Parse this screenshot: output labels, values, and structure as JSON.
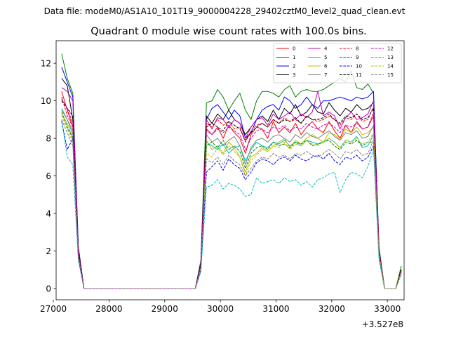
{
  "chart_data": {
    "type": "line",
    "suptitle": "Data file: modeM0/AS1A10_101T19_9000004228_29402cztM0_level2_quad_clean.evt",
    "title": "Quadrant 0 module wise count rates with 100.0s bins.",
    "xlabel": "",
    "ylabel": "",
    "x_offset_label": "+3.527e8",
    "xlim": [
      27050,
      33300
    ],
    "ylim": [
      -0.6,
      13.2
    ],
    "x_ticks": [
      27000,
      28000,
      29000,
      30000,
      31000,
      32000,
      33000
    ],
    "y_ticks": [
      0,
      2,
      4,
      6,
      8,
      10,
      12
    ],
    "legend_position": "top-right",
    "x": [
      27150,
      27250,
      27350,
      27450,
      27550,
      27650,
      27750,
      27850,
      27950,
      28050,
      28150,
      28250,
      28350,
      28450,
      28550,
      28650,
      28750,
      28850,
      28950,
      29050,
      29150,
      29250,
      29350,
      29450,
      29550,
      29650,
      29750,
      29850,
      29950,
      30050,
      30150,
      30250,
      30350,
      30450,
      30550,
      30650,
      30750,
      30850,
      30950,
      31050,
      31150,
      31250,
      31350,
      31450,
      31550,
      31650,
      31750,
      31850,
      31950,
      32050,
      32150,
      32250,
      32350,
      32450,
      32550,
      32650,
      32750,
      32850,
      32950,
      33050,
      33150,
      33250
    ],
    "series": [
      {
        "name": "0",
        "color": "#ff0000",
        "dash": "solid",
        "values": [
          10.5,
          9.5,
          8.6,
          2.0,
          0,
          0,
          0,
          0,
          0,
          0,
          0,
          0,
          0,
          0,
          0,
          0,
          0,
          0,
          0,
          0,
          0,
          0,
          0,
          0,
          0,
          1.2,
          8.5,
          8.2,
          8.6,
          8.0,
          8.7,
          8.3,
          8.0,
          7.2,
          8.2,
          8.6,
          8.5,
          8.0,
          8.9,
          8.3,
          8.6,
          8.3,
          8.8,
          8.2,
          8.6,
          8.9,
          8.5,
          8.3,
          8.9,
          8.4,
          8.0,
          8.7,
          8.3,
          8.9,
          8.5,
          8.6,
          9.2,
          2.0,
          0.0,
          0.0,
          0.0,
          1.0
        ]
      },
      {
        "name": "1",
        "color": "#008000",
        "dash": "solid",
        "values": [
          12.5,
          11.2,
          10.4,
          2.2,
          0,
          0,
          0,
          0,
          0,
          0,
          0,
          0,
          0,
          0,
          0,
          0,
          0,
          0,
          0,
          0,
          0,
          0,
          0,
          0,
          0,
          1.5,
          9.9,
          10.0,
          10.6,
          10.2,
          9.5,
          10.0,
          10.4,
          9.5,
          9.0,
          10.0,
          10.5,
          10.5,
          10.4,
          10.2,
          10.6,
          10.8,
          10.2,
          10.5,
          10.6,
          10.5,
          10.5,
          10.6,
          10.8,
          11.0,
          11.2,
          11.0,
          11.6,
          10.7,
          10.6,
          10.9,
          10.4,
          2.2,
          0.0,
          0.0,
          0.0,
          1.2
        ]
      },
      {
        "name": "2",
        "color": "#0000ff",
        "dash": "solid",
        "values": [
          11.8,
          11.0,
          10.2,
          2.2,
          0,
          0,
          0,
          0,
          0,
          0,
          0,
          0,
          0,
          0,
          0,
          0,
          0,
          0,
          0,
          0,
          0,
          0,
          0,
          0,
          0,
          1.4,
          9.0,
          9.6,
          9.8,
          9.4,
          9.0,
          9.5,
          9.2,
          8.0,
          8.3,
          9.0,
          9.5,
          9.7,
          9.8,
          9.5,
          10.2,
          10.0,
          9.6,
          9.8,
          10.2,
          9.8,
          9.6,
          10.0,
          10.0,
          10.1,
          10.2,
          10.1,
          10.0,
          10.2,
          10.1,
          10.2,
          10.5,
          2.1,
          0.0,
          0.0,
          0.0,
          1.0
        ]
      },
      {
        "name": "3",
        "color": "#000000",
        "dash": "solid",
        "values": [
          11.2,
          10.8,
          9.0,
          2.1,
          0,
          0,
          0,
          0,
          0,
          0,
          0,
          0,
          0,
          0,
          0,
          0,
          0,
          0,
          0,
          0,
          0,
          0,
          0,
          0,
          0,
          1.3,
          9.2,
          8.8,
          9.3,
          9.0,
          9.5,
          9.0,
          8.8,
          8.2,
          8.6,
          9.0,
          9.2,
          8.9,
          9.5,
          9.0,
          9.6,
          9.3,
          9.8,
          9.2,
          9.4,
          9.8,
          9.4,
          9.3,
          9.9,
          9.5,
          9.2,
          9.6,
          9.4,
          9.8,
          9.5,
          9.6,
          9.9,
          2.0,
          0.0,
          0.0,
          0.0,
          1.0
        ]
      },
      {
        "name": "4",
        "color": "#bf00bf",
        "dash": "solid",
        "values": [
          10.7,
          10.5,
          10.0,
          2.0,
          0,
          0,
          0,
          0,
          0,
          0,
          0,
          0,
          0,
          0,
          0,
          0,
          0,
          0,
          0,
          0,
          0,
          0,
          0,
          0,
          0,
          1.3,
          9.0,
          8.5,
          9.1,
          9.0,
          8.6,
          9.0,
          8.8,
          8.0,
          8.6,
          9.0,
          9.1,
          8.7,
          9.3,
          9.0,
          9.2,
          9.4,
          9.0,
          9.3,
          9.1,
          9.4,
          10.5,
          9.2,
          9.4,
          9.2,
          8.5,
          9.1,
          9.4,
          9.0,
          9.1,
          9.3,
          10.0,
          2.0,
          0.0,
          0.0,
          0.0,
          1.0
        ]
      },
      {
        "name": "5",
        "color": "#00bfbf",
        "dash": "solid",
        "values": [
          9.6,
          9.0,
          8.2,
          1.8,
          0,
          0,
          0,
          0,
          0,
          0,
          0,
          0,
          0,
          0,
          0,
          0,
          0,
          0,
          0,
          0,
          0,
          0,
          0,
          0,
          0,
          1.1,
          7.8,
          7.6,
          7.4,
          7.7,
          7.2,
          7.5,
          7.6,
          6.8,
          7.4,
          7.8,
          7.6,
          7.5,
          7.8,
          7.7,
          7.9,
          7.6,
          7.8,
          7.6,
          7.9,
          7.8,
          7.7,
          7.8,
          8.0,
          7.8,
          7.5,
          7.9,
          7.8,
          8.1,
          7.5,
          7.6,
          8.2,
          1.8,
          0.0,
          0.0,
          0.0,
          0.9
        ]
      },
      {
        "name": "6",
        "color": "#bfbf00",
        "dash": "solid",
        "values": [
          9.3,
          8.8,
          8.0,
          1.7,
          0,
          0,
          0,
          0,
          0,
          0,
          0,
          0,
          0,
          0,
          0,
          0,
          0,
          0,
          0,
          0,
          0,
          0,
          0,
          0,
          0,
          1.1,
          7.9,
          7.4,
          7.6,
          7.2,
          7.8,
          7.5,
          7.0,
          6.2,
          7.0,
          7.2,
          7.5,
          7.3,
          7.6,
          7.8,
          8.0,
          7.5,
          7.9,
          7.7,
          8.0,
          8.2,
          8.0,
          7.8,
          8.3,
          8.2,
          7.9,
          8.5,
          8.3,
          8.6,
          8.2,
          8.3,
          8.6,
          1.8,
          0.0,
          0.0,
          0.0,
          0.9
        ]
      },
      {
        "name": "7",
        "color": "#808080",
        "dash": "solid",
        "values": [
          9.5,
          9.0,
          8.4,
          1.8,
          0,
          0,
          0,
          0,
          0,
          0,
          0,
          0,
          0,
          0,
          0,
          0,
          0,
          0,
          0,
          0,
          0,
          0,
          0,
          0,
          0,
          1.2,
          8.2,
          7.8,
          8.0,
          7.6,
          7.9,
          8.1,
          7.6,
          6.6,
          7.5,
          7.9,
          8.0,
          7.8,
          8.1,
          8.2,
          8.0,
          7.8,
          8.2,
          8.0,
          8.3,
          8.1,
          8.0,
          8.2,
          8.4,
          8.1,
          7.9,
          8.3,
          8.2,
          8.4,
          8.0,
          8.1,
          8.7,
          1.9,
          0.0,
          0.0,
          0.0,
          0.9
        ]
      },
      {
        "name": "8",
        "color": "#ff0000",
        "dash": "dashed",
        "values": [
          10.2,
          9.2,
          8.6,
          1.9,
          0,
          0,
          0,
          0,
          0,
          0,
          0,
          0,
          0,
          0,
          0,
          0,
          0,
          0,
          0,
          0,
          0,
          0,
          0,
          0,
          0,
          1.2,
          8.8,
          8.6,
          9.0,
          8.7,
          8.9,
          8.5,
          8.6,
          7.8,
          8.4,
          8.7,
          8.8,
          8.6,
          9.0,
          8.8,
          9.1,
          8.9,
          9.0,
          8.8,
          9.2,
          9.0,
          8.9,
          9.0,
          9.2,
          9.0,
          8.7,
          9.1,
          9.0,
          9.3,
          8.9,
          9.0,
          9.7,
          2.0,
          0.0,
          0.0,
          0.0,
          1.0
        ]
      },
      {
        "name": "9",
        "color": "#008000",
        "dash": "dashed",
        "values": [
          9.4,
          8.6,
          8.0,
          1.7,
          0,
          0,
          0,
          0,
          0,
          0,
          0,
          0,
          0,
          0,
          0,
          0,
          0,
          0,
          0,
          0,
          0,
          0,
          0,
          0,
          0,
          1.1,
          7.6,
          7.8,
          7.5,
          7.9,
          7.4,
          7.6,
          7.3,
          6.4,
          7.2,
          7.5,
          7.6,
          7.4,
          7.8,
          7.6,
          7.7,
          7.5,
          7.8,
          7.7,
          7.9,
          7.6,
          7.7,
          7.8,
          7.9,
          7.6,
          7.4,
          7.8,
          7.7,
          7.9,
          7.6,
          7.8,
          7.8,
          1.8,
          0.0,
          0.0,
          0.0,
          0.9
        ]
      },
      {
        "name": "10",
        "color": "#0000ff",
        "dash": "dashed",
        "values": [
          8.9,
          7.4,
          8.0,
          1.6,
          0,
          0,
          0,
          0,
          0,
          0,
          0,
          0,
          0,
          0,
          0,
          0,
          0,
          0,
          0,
          0,
          0,
          0,
          0,
          0,
          0,
          1.0,
          6.2,
          6.5,
          6.8,
          6.3,
          6.9,
          6.6,
          6.4,
          5.8,
          6.2,
          6.7,
          6.9,
          6.8,
          6.6,
          6.9,
          7.0,
          6.8,
          7.1,
          6.9,
          6.8,
          7.0,
          7.1,
          6.9,
          7.2,
          6.8,
          6.6,
          7.0,
          6.9,
          7.1,
          6.8,
          7.0,
          7.6,
          1.7,
          0.0,
          0.0,
          0.0,
          0.8
        ]
      },
      {
        "name": "11",
        "color": "#000000",
        "dash": "dashed",
        "values": [
          10.0,
          9.6,
          9.2,
          1.9,
          0,
          0,
          0,
          0,
          0,
          0,
          0,
          0,
          0,
          0,
          0,
          0,
          0,
          0,
          0,
          0,
          0,
          0,
          0,
          0,
          0,
          1.3,
          8.6,
          8.8,
          8.6,
          8.4,
          8.9,
          8.7,
          8.5,
          7.9,
          8.3,
          8.6,
          8.8,
          8.6,
          9.0,
          8.8,
          9.0,
          8.9,
          9.1,
          8.8,
          9.2,
          9.0,
          9.0,
          9.1,
          9.3,
          9.0,
          8.8,
          9.2,
          9.1,
          9.3,
          9.0,
          9.1,
          9.6,
          2.0,
          0.0,
          0.0,
          0.0,
          1.0
        ]
      },
      {
        "name": "12",
        "color": "#bf00bf",
        "dash": "dashed",
        "values": [
          10.1,
          9.6,
          8.8,
          1.8,
          0,
          0,
          0,
          0,
          0,
          0,
          0,
          0,
          0,
          0,
          0,
          0,
          0,
          0,
          0,
          0,
          0,
          0,
          0,
          0,
          0,
          1.2,
          8.4,
          8.2,
          8.5,
          8.3,
          8.6,
          8.4,
          8.2,
          7.4,
          8.0,
          8.4,
          8.5,
          8.3,
          8.6,
          8.5,
          8.7,
          8.4,
          8.6,
          8.5,
          8.8,
          8.6,
          8.5,
          8.7,
          8.8,
          8.6,
          8.3,
          8.7,
          8.6,
          8.8,
          8.5,
          8.6,
          9.4,
          1.9,
          0.0,
          0.0,
          0.0,
          0.9
        ]
      },
      {
        "name": "13",
        "color": "#00bfbf",
        "dash": "dashed",
        "values": [
          9.0,
          7.0,
          6.6,
          1.5,
          0,
          0,
          0,
          0,
          0,
          0,
          0,
          0,
          0,
          0,
          0,
          0,
          0,
          0,
          0,
          0,
          0,
          0,
          0,
          0,
          0,
          0.9,
          5.4,
          5.5,
          5.8,
          5.3,
          5.6,
          5.5,
          5.3,
          4.9,
          5.0,
          5.9,
          5.6,
          5.7,
          5.8,
          5.6,
          5.9,
          5.7,
          5.8,
          5.5,
          5.7,
          5.4,
          5.8,
          5.9,
          6.1,
          6.2,
          5.1,
          5.8,
          6.2,
          6.1,
          5.9,
          6.5,
          7.4,
          1.5,
          0.0,
          0.0,
          0.0,
          0.8
        ]
      },
      {
        "name": "14",
        "color": "#bfbf00",
        "dash": "dashed",
        "values": [
          9.2,
          8.5,
          7.8,
          1.7,
          0,
          0,
          0,
          0,
          0,
          0,
          0,
          0,
          0,
          0,
          0,
          0,
          0,
          0,
          0,
          0,
          0,
          0,
          0,
          0,
          0,
          1.1,
          7.2,
          7.0,
          7.5,
          7.1,
          7.6,
          7.3,
          7.0,
          6.0,
          6.8,
          7.1,
          7.4,
          7.3,
          7.6,
          7.5,
          7.8,
          7.4,
          7.7,
          7.6,
          7.9,
          7.7,
          7.6,
          7.8,
          8.0,
          7.8,
          7.5,
          7.9,
          7.8,
          8.0,
          7.7,
          7.8,
          8.3,
          1.8,
          0.0,
          0.0,
          0.0,
          0.9
        ]
      },
      {
        "name": "15",
        "color": "#808080",
        "dash": "dashed",
        "values": [
          9.0,
          8.3,
          7.6,
          1.6,
          0,
          0,
          0,
          0,
          0,
          0,
          0,
          0,
          0,
          0,
          0,
          0,
          0,
          0,
          0,
          0,
          0,
          0,
          0,
          0,
          0,
          1.0,
          6.9,
          6.7,
          7.0,
          6.6,
          7.1,
          6.8,
          6.6,
          6.0,
          6.4,
          6.8,
          7.0,
          6.9,
          7.2,
          7.0,
          7.1,
          6.9,
          7.2,
          7.1,
          7.3,
          7.1,
          7.0,
          7.2,
          7.4,
          7.2,
          6.9,
          7.3,
          7.2,
          7.4,
          7.1,
          7.2,
          7.9,
          1.7,
          0.0,
          0.0,
          0.0,
          0.8
        ]
      }
    ]
  }
}
